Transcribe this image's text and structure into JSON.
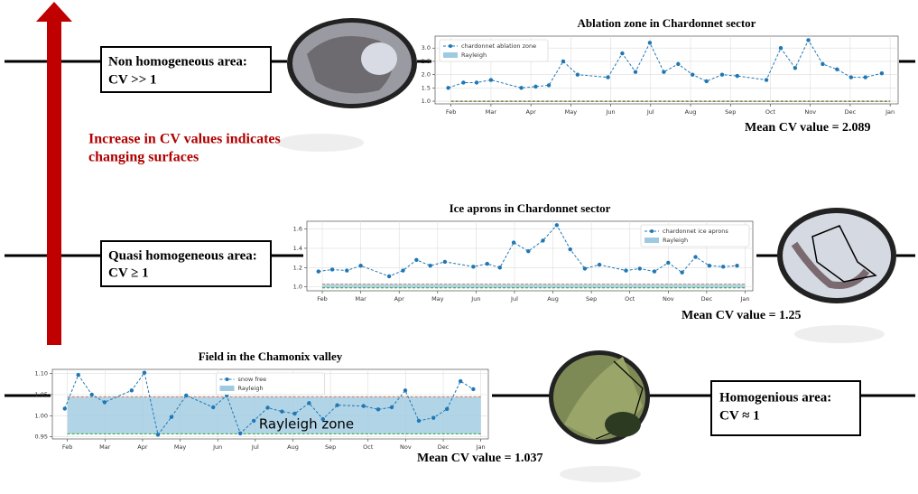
{
  "chart_data": [
    {
      "type": "line",
      "title": "Ablation zone in Chardonnet sector",
      "x": [
        0.93,
        1.31,
        1.64,
        2.0,
        2.76,
        3.12,
        3.45,
        3.81,
        4.17,
        4.93,
        5.29,
        5.62,
        5.98,
        6.33,
        6.69,
        7.05,
        7.4,
        7.79,
        8.17,
        8.9,
        9.26,
        9.62,
        9.95,
        10.31,
        10.67,
        11.02,
        11.38,
        11.79
      ],
      "series": [
        {
          "name": "chardonnet ablation zone",
          "color": "#1f77b4",
          "values": [
            1.5,
            1.7,
            1.7,
            1.8,
            1.5,
            1.55,
            1.6,
            2.5,
            2.0,
            1.9,
            2.8,
            2.1,
            3.2,
            2.1,
            2.4,
            2.0,
            1.75,
            2.0,
            1.95,
            1.8,
            3.0,
            2.25,
            3.3,
            2.4,
            2.2,
            1.9,
            1.9,
            2.05
          ]
        }
      ],
      "band": {
        "name": "Rayleigh",
        "color": "#9ecae1",
        "lower": 0.99,
        "upper": 1.01
      },
      "xlim": [
        0.6,
        12.2
      ],
      "xticks": [
        {
          "value": 1,
          "label": "Feb"
        },
        {
          "value": 2,
          "label": "Mar"
        },
        {
          "value": 3,
          "label": "Apr"
        },
        {
          "value": 4,
          "label": "May"
        },
        {
          "value": 5,
          "label": "Jun"
        },
        {
          "value": 6,
          "label": "Jul"
        },
        {
          "value": 7,
          "label": "Aug"
        },
        {
          "value": 8,
          "label": "Sep"
        },
        {
          "value": 9,
          "label": "Oct"
        },
        {
          "value": 10,
          "label": "Nov"
        },
        {
          "value": 11,
          "label": "Dec"
        },
        {
          "value": 12,
          "label": "Jan"
        }
      ],
      "ylim": [
        0.9,
        3.45
      ],
      "yticks": [
        {
          "value": 1,
          "label": "1.0"
        },
        {
          "value": 1.5,
          "label": "1.5"
        },
        {
          "value": 2,
          "label": "2.0"
        },
        {
          "value": 2.5,
          "label": "2.5"
        },
        {
          "value": 3,
          "label": "3.0"
        }
      ],
      "grid": true,
      "legend": "upper left"
    },
    {
      "type": "line",
      "title": "Ice aprons in Chardonnet sector",
      "x": [
        0.9,
        1.26,
        1.64,
        2.0,
        2.74,
        3.1,
        3.45,
        3.81,
        4.19,
        4.93,
        5.29,
        5.62,
        5.98,
        6.36,
        6.74,
        7.1,
        7.45,
        7.83,
        8.21,
        8.9,
        9.26,
        9.64,
        10.0,
        10.36,
        10.71,
        11.07,
        11.43,
        11.79
      ],
      "series": [
        {
          "name": "chardonnet ice aprons",
          "color": "#1f77b4",
          "values": [
            1.16,
            1.18,
            1.17,
            1.22,
            1.11,
            1.17,
            1.28,
            1.22,
            1.26,
            1.21,
            1.24,
            1.2,
            1.46,
            1.37,
            1.48,
            1.64,
            1.39,
            1.19,
            1.23,
            1.17,
            1.19,
            1.16,
            1.25,
            1.15,
            1.31,
            1.22,
            1.21,
            1.22
          ]
        }
      ],
      "band": {
        "name": "Rayleigh",
        "color": "#9ecae1",
        "lower": 0.99,
        "upper": 1.03
      },
      "xlim": [
        0.6,
        12.2
      ],
      "xticks": [
        {
          "value": 1,
          "label": "Feb"
        },
        {
          "value": 2,
          "label": "Mar"
        },
        {
          "value": 3,
          "label": "Apr"
        },
        {
          "value": 4,
          "label": "May"
        },
        {
          "value": 5,
          "label": "Jun"
        },
        {
          "value": 6,
          "label": "Jul"
        },
        {
          "value": 7,
          "label": "Aug"
        },
        {
          "value": 8,
          "label": "Sep"
        },
        {
          "value": 9,
          "label": "Oct"
        },
        {
          "value": 10,
          "label": "Nov"
        },
        {
          "value": 11,
          "label": "Dec"
        },
        {
          "value": 12,
          "label": "Jan"
        }
      ],
      "ylim": [
        0.96,
        1.68
      ],
      "yticks": [
        {
          "value": 1,
          "label": "1.0"
        },
        {
          "value": 1.2,
          "label": "1.2"
        },
        {
          "value": 1.4,
          "label": "1.4"
        },
        {
          "value": 1.6,
          "label": "1.6"
        }
      ],
      "grid": true,
      "legend": "upper right"
    },
    {
      "type": "line",
      "title": "Field in the Chamonix valley",
      "annotation": "Rayleigh zone",
      "x": [
        0.93,
        1.29,
        1.65,
        1.99,
        2.71,
        3.05,
        3.41,
        3.77,
        4.16,
        4.88,
        5.24,
        5.6,
        5.96,
        6.33,
        6.71,
        7.05,
        7.43,
        7.8,
        8.18,
        8.88,
        9.27,
        9.63,
        9.99,
        10.35,
        10.74,
        11.1,
        11.46,
        11.8
      ],
      "series": [
        {
          "name": "snow free",
          "color": "#1f77b4",
          "values": [
            1.017,
            1.097,
            1.05,
            1.032,
            1.06,
            1.102,
            0.955,
            0.997,
            1.048,
            1.02,
            1.048,
            0.958,
            0.988,
            1.019,
            1.01,
            1.005,
            1.03,
            0.992,
            1.025,
            1.023,
            1.015,
            1.02,
            1.06,
            0.988,
            0.995,
            1.016,
            1.082,
            1.063
          ]
        }
      ],
      "band": {
        "name": "Rayleigh",
        "color": "#9ecae1",
        "lower": 0.957,
        "upper": 1.045
      },
      "xlim": [
        0.6,
        12.2
      ],
      "xticks": [
        {
          "value": 1,
          "label": "Feb"
        },
        {
          "value": 2,
          "label": "Mar"
        },
        {
          "value": 3,
          "label": "Apr"
        },
        {
          "value": 4,
          "label": "May"
        },
        {
          "value": 5,
          "label": "Jun"
        },
        {
          "value": 6,
          "label": "Jul"
        },
        {
          "value": 7,
          "label": "Aug"
        },
        {
          "value": 8,
          "label": "Sep"
        },
        {
          "value": 9,
          "label": "Oct"
        },
        {
          "value": 10,
          "label": "Nov"
        },
        {
          "value": 11,
          "label": "Dec"
        },
        {
          "value": 12,
          "label": "Jan"
        }
      ],
      "ylim": [
        0.945,
        1.11
      ],
      "yticks": [
        {
          "value": 0.95,
          "label": "0.95"
        },
        {
          "value": 1,
          "label": "1.00"
        },
        {
          "value": 1.05,
          "label": "1.05"
        },
        {
          "value": 1.1,
          "label": "1.10"
        }
      ],
      "grid": true,
      "legend": "upper center"
    }
  ],
  "labels": {
    "non_homogeneous": [
      "Non homogeneous area:",
      "CV >> 1"
    ],
    "quasi_homogeneous": [
      "Quasi homogeneous area:",
      "CV ≥ 1"
    ],
    "homogeneous": [
      "Homogenious area:",
      "CV ≈ 1"
    ],
    "trend": [
      "Increase in CV values indicates",
      "changing surfaces"
    ],
    "mean_ablation": "Mean CV value = 2.089",
    "mean_aprons": "Mean CV value = 1.25",
    "mean_field": "Mean CV value = 1.037"
  }
}
